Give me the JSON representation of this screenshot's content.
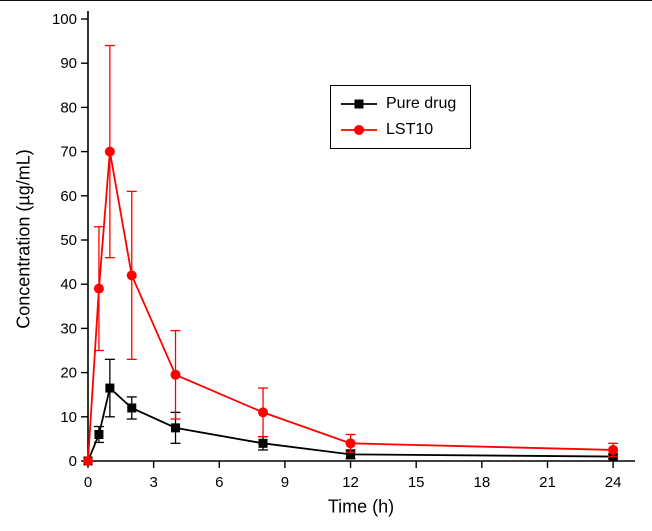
{
  "chart_data": {
    "type": "line",
    "title": "",
    "xlabel": "Time (h)",
    "ylabel": "Concentration (µg/mL)",
    "xlim": [
      0,
      25
    ],
    "ylim": [
      0,
      100
    ],
    "xticks": [
      0,
      3,
      6,
      9,
      12,
      15,
      18,
      21,
      24
    ],
    "yticks": [
      0,
      10,
      20,
      30,
      40,
      50,
      60,
      70,
      80,
      90,
      100
    ],
    "grid": false,
    "legend_position": "upper-center",
    "x": [
      0,
      0.5,
      1,
      2,
      4,
      8,
      12,
      24
    ],
    "series": [
      {
        "name": "Pure drug",
        "color": "#000000",
        "marker": "square",
        "values": [
          0,
          6,
          16.5,
          12,
          7.5,
          4,
          1.5,
          1
        ],
        "errors": [
          0,
          1.8,
          6.5,
          2.5,
          3.5,
          1.5,
          1,
          0.5
        ]
      },
      {
        "name": "LST10",
        "color": "#ff0000",
        "marker": "circle",
        "values": [
          0,
          39,
          70,
          42,
          19.5,
          11,
          4,
          2.5
        ],
        "errors": [
          0,
          14,
          24,
          19,
          10,
          5.5,
          2,
          1.5
        ]
      }
    ]
  }
}
